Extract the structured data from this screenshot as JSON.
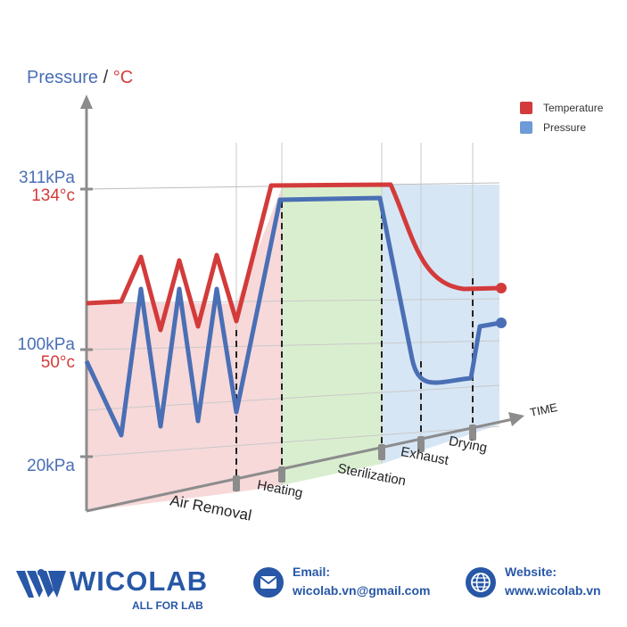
{
  "chart_data": {
    "type": "line",
    "y_axis_label_pressure": "Pressure",
    "y_axis_label_separator": "/",
    "y_axis_label_temperature": "°C",
    "x_axis_label": "TIME",
    "y_ticks": [
      {
        "pressure": "311kPa",
        "temperature": "134°c"
      },
      {
        "pressure": "100kPa",
        "temperature": "50°c"
      },
      {
        "pressure": "20kPa",
        "temperature": ""
      }
    ],
    "phases": [
      "Air Removal",
      "Heating",
      "Sterilization",
      "Exhaust",
      "Drying"
    ],
    "series": [
      {
        "name": "Temperature",
        "color": "#d33b3b"
      },
      {
        "name": "Pressure",
        "color": "#4a6fb5"
      }
    ],
    "legend_placement": "top-right"
  },
  "footer": {
    "brand_name": "WICOLAB",
    "brand_tagline": "ALL FOR LAB",
    "email_label": "Email:",
    "email_value": "wicolab.vn@gmail.com",
    "website_label": "Website:",
    "website_value": "www.wicolab.vn"
  }
}
